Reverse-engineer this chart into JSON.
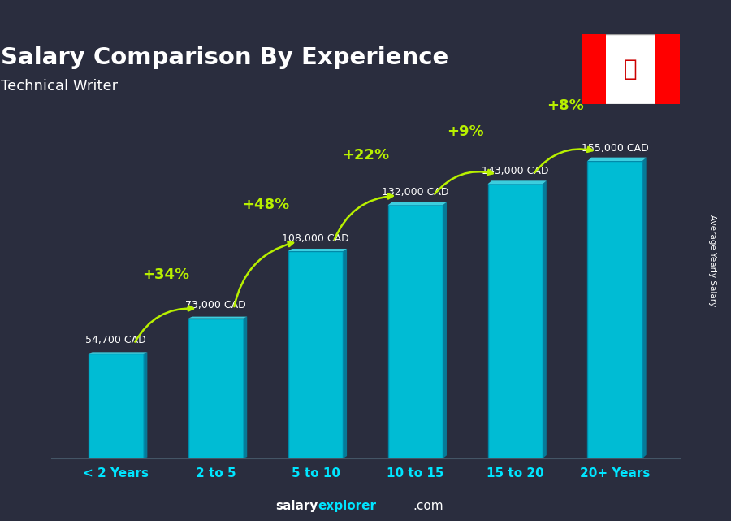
{
  "title": "Salary Comparison By Experience",
  "subtitle": "Technical Writer",
  "categories": [
    "< 2 Years",
    "2 to 5",
    "5 to 10",
    "10 to 15",
    "15 to 20",
    "20+ Years"
  ],
  "values": [
    54700,
    73000,
    108000,
    132000,
    143000,
    155000
  ],
  "salary_labels": [
    "54,700 CAD",
    "73,000 CAD",
    "108,000 CAD",
    "132,000 CAD",
    "143,000 CAD",
    "155,000 CAD"
  ],
  "pct_changes": [
    "+34%",
    "+48%",
    "+22%",
    "+9%",
    "+8%"
  ],
  "bar_color_face": "#00bcd4",
  "bar_color_dark": "#0088a8",
  "bar_color_light": "#40e0f0",
  "background_color": "#2a2d3e",
  "title_color": "#ffffff",
  "subtitle_color": "#ffffff",
  "salary_label_color": "#ffffff",
  "pct_color": "#b8f000",
  "xlabel_color": "#00e5ff",
  "ylabel_text": "Average Yearly Salary",
  "ylim": [
    0,
    190000
  ],
  "footer_salary_color": "#ffffff",
  "footer_explorer_color": "#00e5ff",
  "footer_dot_com_color": "#ffffff"
}
